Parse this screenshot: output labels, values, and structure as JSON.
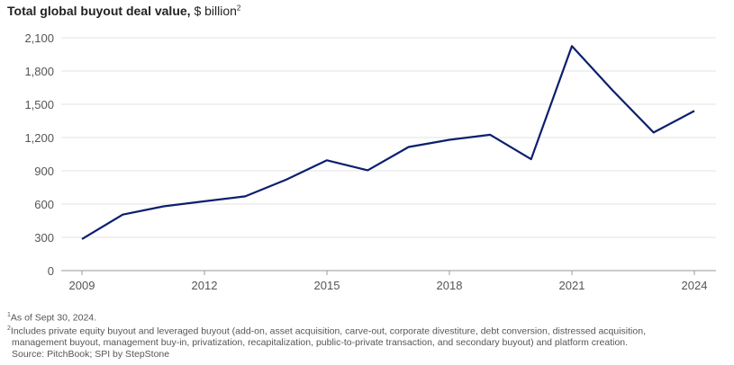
{
  "chart_data": {
    "type": "line",
    "title": "Total global buyout deal value,",
    "unit": "$ billion",
    "unit_sup": "2",
    "x": [
      2009,
      2010,
      2011,
      2012,
      2013,
      2014,
      2015,
      2016,
      2017,
      2018,
      2019,
      2020,
      2021,
      2022,
      2023,
      2024
    ],
    "values": [
      285,
      505,
      580,
      625,
      670,
      820,
      995,
      905,
      1115,
      1180,
      1225,
      1005,
      2025,
      1625,
      1245,
      1440
    ],
    "x_ticks": [
      "2009",
      "2012",
      "2015",
      "2018",
      "2021",
      "2024"
    ],
    "y_ticks": [
      "0",
      "300",
      "600",
      "900",
      "1,200",
      "1,500",
      "1,800",
      "2,100"
    ],
    "ylim": [
      0,
      2100
    ],
    "xlim": [
      2009,
      2024
    ],
    "grid": true,
    "line_color": "#0b1f6e"
  },
  "footnotes": {
    "fn1_mark": "1",
    "fn1_text": "As of Sept 30, 2024.",
    "fn2_mark": "2",
    "fn2_line1": "Includes private equity buyout and leveraged buyout (add-on, asset acquisition, carve-out, corporate divestiture, debt conversion, distressed acquisition,",
    "fn2_line2": "management buyout, management buy-in, privatization, recapitalization, public-to-private transaction, and secondary buyout) and platform creation.",
    "source": "Source: PitchBook; SPI by StepStone"
  }
}
